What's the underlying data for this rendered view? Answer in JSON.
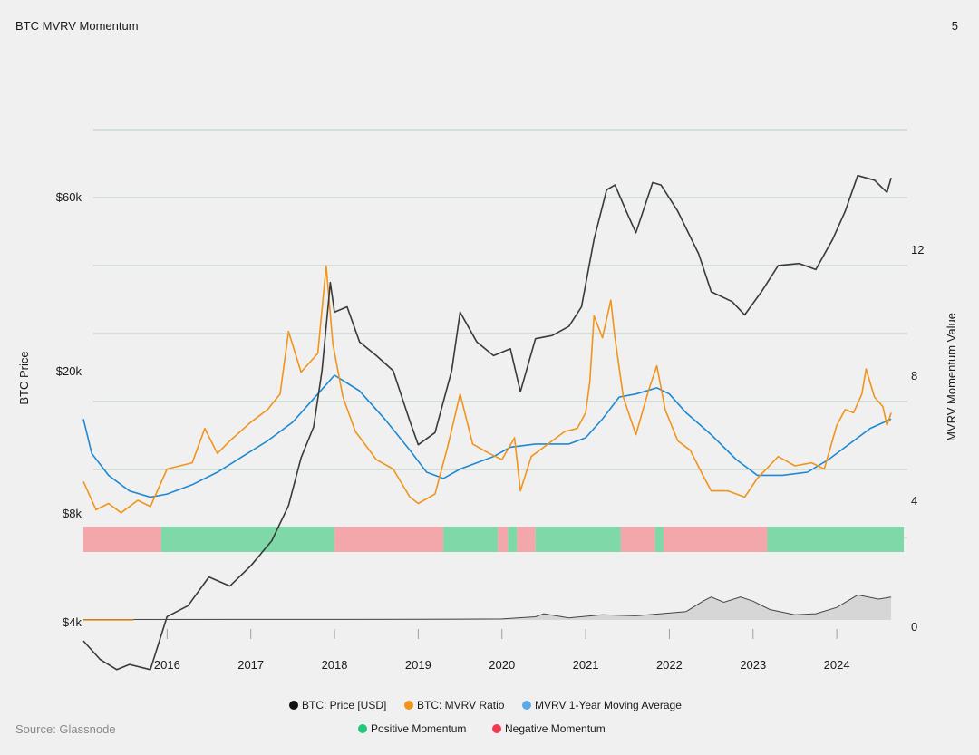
{
  "header": {
    "title": "BTC MVRV Momentum",
    "page_number": "5"
  },
  "source": "Source: Glassnode",
  "colors": {
    "price": "#3a3a3a",
    "mvrv": "#f0941c",
    "mvrv_ma": "#1f88d2",
    "positive": "#7fd8a8",
    "negative": "#f4a7ab",
    "grid": "#b9cbc2",
    "legend_price": "#111111",
    "legend_mvrv": "#f0941c",
    "legend_ma": "#5aa9e6",
    "legend_pos": "#21c77a",
    "legend_neg": "#ee3b52"
  },
  "chart_data": {
    "type": "line",
    "x_ticks": [
      "2016",
      "2017",
      "2018",
      "2019",
      "2020",
      "2021",
      "2022",
      "2023",
      "2024"
    ],
    "x_range": [
      2015.0,
      2024.8
    ],
    "left_axis": {
      "label": "BTC Price",
      "tick_labels": [
        "$60k",
        "$20k",
        "$8k",
        "$4k"
      ],
      "scale": "log"
    },
    "right_axis": {
      "label": "MVRV Momentum Value",
      "tick_labels": [
        "12",
        "8",
        "4",
        "0"
      ],
      "ylim": [
        0,
        14
      ]
    },
    "series": [
      {
        "name": "BTC: Price [USD]",
        "axis": "left",
        "points": [
          [
            2015.0,
            3600
          ],
          [
            2015.2,
            3200
          ],
          [
            2015.4,
            3000
          ],
          [
            2015.55,
            3100
          ],
          [
            2015.8,
            3000
          ],
          [
            2016.0,
            4200
          ],
          [
            2016.25,
            4500
          ],
          [
            2016.5,
            5400
          ],
          [
            2016.75,
            5100
          ],
          [
            2017.0,
            5800
          ],
          [
            2017.25,
            6800
          ],
          [
            2017.45,
            8500
          ],
          [
            2017.6,
            11500
          ],
          [
            2017.75,
            14000
          ],
          [
            2017.85,
            20000
          ],
          [
            2017.95,
            35000
          ],
          [
            2018.0,
            29000
          ],
          [
            2018.15,
            30000
          ],
          [
            2018.3,
            24000
          ],
          [
            2018.5,
            22000
          ],
          [
            2018.7,
            20000
          ],
          [
            2018.9,
            14500
          ],
          [
            2019.0,
            12500
          ],
          [
            2019.2,
            13500
          ],
          [
            2019.4,
            20000
          ],
          [
            2019.5,
            29000
          ],
          [
            2019.7,
            24000
          ],
          [
            2019.9,
            22000
          ],
          [
            2020.1,
            23000
          ],
          [
            2020.22,
            17500
          ],
          [
            2020.4,
            24500
          ],
          [
            2020.6,
            25000
          ],
          [
            2020.8,
            26500
          ],
          [
            2020.95,
            30000
          ],
          [
            2021.1,
            46000
          ],
          [
            2021.25,
            63000
          ],
          [
            2021.35,
            65000
          ],
          [
            2021.5,
            54000
          ],
          [
            2021.6,
            48000
          ],
          [
            2021.8,
            66000
          ],
          [
            2021.9,
            65000
          ],
          [
            2022.1,
            55000
          ],
          [
            2022.35,
            42000
          ],
          [
            2022.5,
            33000
          ],
          [
            2022.75,
            31000
          ],
          [
            2022.9,
            28500
          ],
          [
            2023.1,
            33000
          ],
          [
            2023.3,
            39000
          ],
          [
            2023.55,
            39500
          ],
          [
            2023.75,
            38000
          ],
          [
            2023.95,
            46000
          ],
          [
            2024.1,
            55000
          ],
          [
            2024.25,
            69000
          ],
          [
            2024.45,
            67000
          ],
          [
            2024.6,
            62000
          ],
          [
            2024.65,
            68000
          ]
        ]
      },
      {
        "name": "BTC: MVRV Ratio",
        "axis": "right",
        "points": [
          [
            2015.0,
            4.6
          ],
          [
            2015.15,
            3.7
          ],
          [
            2015.3,
            3.9
          ],
          [
            2015.45,
            3.6
          ],
          [
            2015.65,
            4.0
          ],
          [
            2015.8,
            3.8
          ],
          [
            2016.0,
            5.0
          ],
          [
            2016.3,
            5.2
          ],
          [
            2016.45,
            6.3
          ],
          [
            2016.6,
            5.5
          ],
          [
            2016.75,
            5.9
          ],
          [
            2017.0,
            6.5
          ],
          [
            2017.2,
            6.9
          ],
          [
            2017.35,
            7.4
          ],
          [
            2017.45,
            9.4
          ],
          [
            2017.6,
            8.1
          ],
          [
            2017.8,
            8.7
          ],
          [
            2017.9,
            11.5
          ],
          [
            2017.98,
            9.0
          ],
          [
            2018.1,
            7.3
          ],
          [
            2018.25,
            6.2
          ],
          [
            2018.5,
            5.3
          ],
          [
            2018.7,
            5.0
          ],
          [
            2018.9,
            4.1
          ],
          [
            2019.0,
            3.9
          ],
          [
            2019.2,
            4.2
          ],
          [
            2019.35,
            5.7
          ],
          [
            2019.5,
            7.4
          ],
          [
            2019.65,
            5.8
          ],
          [
            2019.85,
            5.5
          ],
          [
            2020.0,
            5.3
          ],
          [
            2020.15,
            6.0
          ],
          [
            2020.22,
            4.3
          ],
          [
            2020.35,
            5.4
          ],
          [
            2020.55,
            5.8
          ],
          [
            2020.75,
            6.2
          ],
          [
            2020.9,
            6.3
          ],
          [
            2021.0,
            6.8
          ],
          [
            2021.05,
            7.8
          ],
          [
            2021.1,
            9.9
          ],
          [
            2021.2,
            9.2
          ],
          [
            2021.3,
            10.4
          ],
          [
            2021.35,
            9.2
          ],
          [
            2021.45,
            7.3
          ],
          [
            2021.6,
            6.1
          ],
          [
            2021.75,
            7.5
          ],
          [
            2021.85,
            8.3
          ],
          [
            2021.95,
            6.9
          ],
          [
            2022.1,
            5.9
          ],
          [
            2022.25,
            5.6
          ],
          [
            2022.4,
            4.8
          ],
          [
            2022.5,
            4.3
          ],
          [
            2022.7,
            4.3
          ],
          [
            2022.9,
            4.1
          ],
          [
            2023.05,
            4.7
          ],
          [
            2023.3,
            5.4
          ],
          [
            2023.5,
            5.1
          ],
          [
            2023.7,
            5.2
          ],
          [
            2023.85,
            5.0
          ],
          [
            2024.0,
            6.4
          ],
          [
            2024.1,
            6.9
          ],
          [
            2024.2,
            6.8
          ],
          [
            2024.3,
            7.4
          ],
          [
            2024.35,
            8.2
          ],
          [
            2024.45,
            7.3
          ],
          [
            2024.55,
            7.0
          ],
          [
            2024.6,
            6.4
          ],
          [
            2024.65,
            6.8
          ]
        ]
      },
      {
        "name": "MVRV 1-Year Moving Average",
        "axis": "right",
        "points": [
          [
            2015.0,
            6.6
          ],
          [
            2015.1,
            5.5
          ],
          [
            2015.3,
            4.8
          ],
          [
            2015.55,
            4.3
          ],
          [
            2015.8,
            4.1
          ],
          [
            2016.0,
            4.2
          ],
          [
            2016.3,
            4.5
          ],
          [
            2016.6,
            4.9
          ],
          [
            2016.9,
            5.4
          ],
          [
            2017.2,
            5.9
          ],
          [
            2017.5,
            6.5
          ],
          [
            2017.8,
            7.4
          ],
          [
            2018.0,
            8.0
          ],
          [
            2018.3,
            7.5
          ],
          [
            2018.6,
            6.6
          ],
          [
            2018.9,
            5.6
          ],
          [
            2019.1,
            4.9
          ],
          [
            2019.3,
            4.7
          ],
          [
            2019.5,
            5.0
          ],
          [
            2019.7,
            5.2
          ],
          [
            2019.9,
            5.4
          ],
          [
            2020.1,
            5.7
          ],
          [
            2020.4,
            5.8
          ],
          [
            2020.8,
            5.8
          ],
          [
            2021.0,
            6.0
          ],
          [
            2021.2,
            6.6
          ],
          [
            2021.4,
            7.3
          ],
          [
            2021.6,
            7.4
          ],
          [
            2021.85,
            7.6
          ],
          [
            2022.0,
            7.4
          ],
          [
            2022.2,
            6.8
          ],
          [
            2022.5,
            6.1
          ],
          [
            2022.8,
            5.3
          ],
          [
            2023.05,
            4.8
          ],
          [
            2023.35,
            4.8
          ],
          [
            2023.65,
            4.9
          ],
          [
            2023.9,
            5.3
          ],
          [
            2024.15,
            5.8
          ],
          [
            2024.4,
            6.3
          ],
          [
            2024.65,
            6.6
          ]
        ]
      },
      {
        "name": "MVRV Momentum (lower panel)",
        "axis": "right",
        "points": [
          [
            2015.0,
            0.02
          ],
          [
            2019.0,
            0.03
          ],
          [
            2020.0,
            0.05
          ],
          [
            2020.4,
            0.15
          ],
          [
            2020.5,
            0.3
          ],
          [
            2020.8,
            0.1
          ],
          [
            2021.2,
            0.25
          ],
          [
            2021.6,
            0.2
          ],
          [
            2021.9,
            0.3
          ],
          [
            2022.2,
            0.4
          ],
          [
            2022.4,
            0.9
          ],
          [
            2022.5,
            1.1
          ],
          [
            2022.65,
            0.85
          ],
          [
            2022.85,
            1.1
          ],
          [
            2023.0,
            0.9
          ],
          [
            2023.2,
            0.5
          ],
          [
            2023.5,
            0.25
          ],
          [
            2023.75,
            0.3
          ],
          [
            2024.0,
            0.6
          ],
          [
            2024.25,
            1.2
          ],
          [
            2024.5,
            1.0
          ],
          [
            2024.65,
            1.1
          ]
        ]
      }
    ],
    "momentum_regimes": [
      {
        "state": "negative",
        "from": 2015.0,
        "to": 2015.93
      },
      {
        "state": "positive",
        "from": 2015.93,
        "to": 2018.0
      },
      {
        "state": "negative",
        "from": 2018.0,
        "to": 2019.3
      },
      {
        "state": "positive",
        "from": 2019.3,
        "to": 2019.95
      },
      {
        "state": "negative",
        "from": 2019.95,
        "to": 2020.07
      },
      {
        "state": "positive",
        "from": 2020.07,
        "to": 2020.18
      },
      {
        "state": "negative",
        "from": 2020.18,
        "to": 2020.4
      },
      {
        "state": "positive",
        "from": 2020.4,
        "to": 2021.42
      },
      {
        "state": "negative",
        "from": 2021.42,
        "to": 2021.83
      },
      {
        "state": "positive",
        "from": 2021.83,
        "to": 2021.93
      },
      {
        "state": "negative",
        "from": 2021.93,
        "to": 2023.17
      },
      {
        "state": "positive",
        "from": 2023.17,
        "to": 2024.8
      }
    ],
    "grid": true,
    "legend_position": "bottom-center"
  },
  "legend": {
    "items": [
      {
        "label": "BTC: Price [USD]",
        "color_key": "legend_price"
      },
      {
        "label": "BTC: MVRV Ratio",
        "color_key": "legend_mvrv"
      },
      {
        "label": "MVRV 1-Year Moving Average",
        "color_key": "legend_ma"
      },
      {
        "label": "Positive Momentum",
        "color_key": "legend_pos"
      },
      {
        "label": "Negative Momentum",
        "color_key": "legend_neg"
      }
    ]
  }
}
